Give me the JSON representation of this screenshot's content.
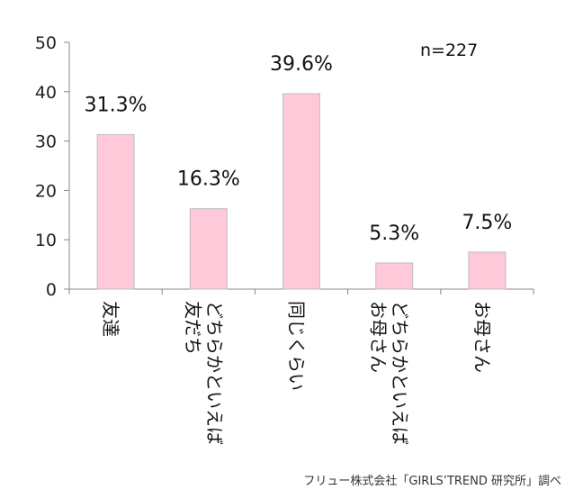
{
  "chart_data": {
    "type": "bar",
    "categories": [
      [
        "友達"
      ],
      [
        "どちらかといえば",
        "友だち"
      ],
      [
        "同じくらい"
      ],
      [
        "どちらかといえば",
        "お母さん"
      ],
      [
        "お母さん"
      ]
    ],
    "values": [
      31.3,
      16.3,
      39.6,
      5.3,
      7.5
    ],
    "data_labels": [
      "31.3%",
      "16.3%",
      "39.6%",
      "5.3%",
      "7.5%"
    ],
    "ylim": [
      0,
      50
    ],
    "yticks": [
      0,
      10,
      20,
      30,
      40,
      50
    ],
    "annotation": "n=227",
    "bar_color": "#ffc9d9",
    "bar_edge_color": "#bfbfbf",
    "grid": false
  },
  "source_note": "フリュー株式会社「GIRLS’TREND 研究所」調べ"
}
